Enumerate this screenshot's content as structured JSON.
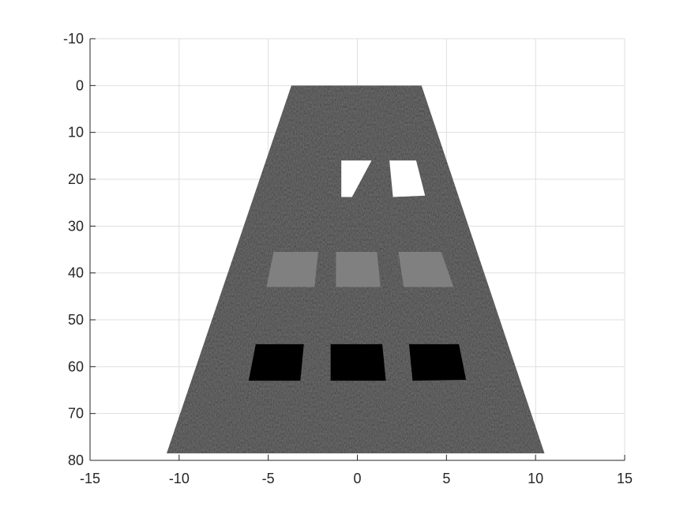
{
  "chart_data": {
    "type": "image",
    "title": "",
    "xlabel": "",
    "ylabel": "",
    "xlim": [
      -15,
      15
    ],
    "ylim": [
      80,
      -10
    ],
    "y_reversed": true,
    "grid": true,
    "x_ticks": [
      -15,
      -10,
      -5,
      0,
      5,
      10,
      15
    ],
    "y_ticks": [
      -10,
      0,
      10,
      20,
      30,
      40,
      50,
      60,
      70,
      80
    ],
    "background_region": {
      "name": "speckle-trapezoid",
      "color": "#3c3c3c",
      "corners": [
        [
          -3.7,
          0
        ],
        [
          3.6,
          0
        ],
        [
          10.5,
          78.5
        ],
        [
          -10.7,
          78.5
        ]
      ]
    },
    "patches": [
      {
        "row": "white",
        "color": "#ffffff",
        "corners": [
          [
            -0.9,
            16
          ],
          [
            0.8,
            16
          ],
          [
            -0.3,
            23.8
          ],
          [
            -0.9,
            23.8
          ]
        ]
      },
      {
        "row": "white",
        "color": "#ffffff",
        "corners": [
          [
            1.8,
            16
          ],
          [
            3.3,
            16
          ],
          [
            3.8,
            23.5
          ],
          [
            2.0,
            23.8
          ]
        ]
      },
      {
        "row": "gray",
        "color": "#808080",
        "corners": [
          [
            -4.7,
            35.5
          ],
          [
            -2.2,
            35.5
          ],
          [
            -2.4,
            43.0
          ],
          [
            -5.1,
            43.0
          ]
        ]
      },
      {
        "row": "gray",
        "color": "#808080",
        "corners": [
          [
            -1.2,
            35.5
          ],
          [
            1.1,
            35.5
          ],
          [
            1.3,
            43.0
          ],
          [
            -1.2,
            43.0
          ]
        ]
      },
      {
        "row": "gray",
        "color": "#808080",
        "corners": [
          [
            2.3,
            35.5
          ],
          [
            4.7,
            35.5
          ],
          [
            5.4,
            43.0
          ],
          [
            2.6,
            43.0
          ]
        ]
      },
      {
        "row": "black",
        "color": "#000000",
        "corners": [
          [
            -5.7,
            55.2
          ],
          [
            -3.0,
            55.2
          ],
          [
            -3.2,
            63.0
          ],
          [
            -6.1,
            63.0
          ]
        ]
      },
      {
        "row": "black",
        "color": "#000000",
        "corners": [
          [
            -1.5,
            55.2
          ],
          [
            1.4,
            55.2
          ],
          [
            1.6,
            63.0
          ],
          [
            -1.5,
            63.0
          ]
        ]
      },
      {
        "row": "black",
        "color": "#000000",
        "corners": [
          [
            2.9,
            55.2
          ],
          [
            5.7,
            55.2
          ],
          [
            6.1,
            62.8
          ],
          [
            3.1,
            63.0
          ]
        ]
      }
    ]
  }
}
